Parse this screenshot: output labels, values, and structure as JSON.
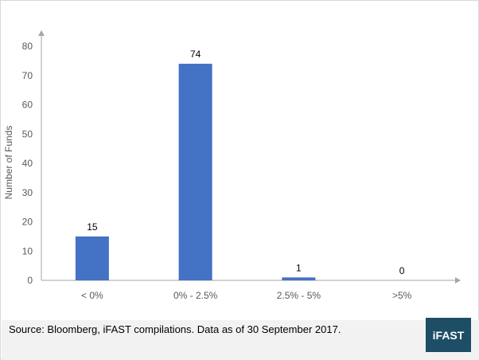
{
  "chart_data": {
    "type": "bar",
    "categories": [
      "< 0%",
      "0% - 2.5%",
      "2.5% - 5%",
      ">5%"
    ],
    "values": [
      15,
      74,
      1,
      0
    ],
    "title": "",
    "xlabel": "",
    "ylabel": "Number of Funds",
    "ylim": [
      0,
      80
    ],
    "yticks": [
      0,
      10,
      20,
      30,
      40,
      50,
      60,
      70,
      80
    ],
    "grid": false,
    "legend": "none",
    "bar_color": "#4472c4"
  },
  "footer": {
    "source": "Source: Bloomberg, iFAST compilations. Data as of 30 September 2017.",
    "logo_text": "iFAST",
    "logo_color": "#1d4e66"
  }
}
